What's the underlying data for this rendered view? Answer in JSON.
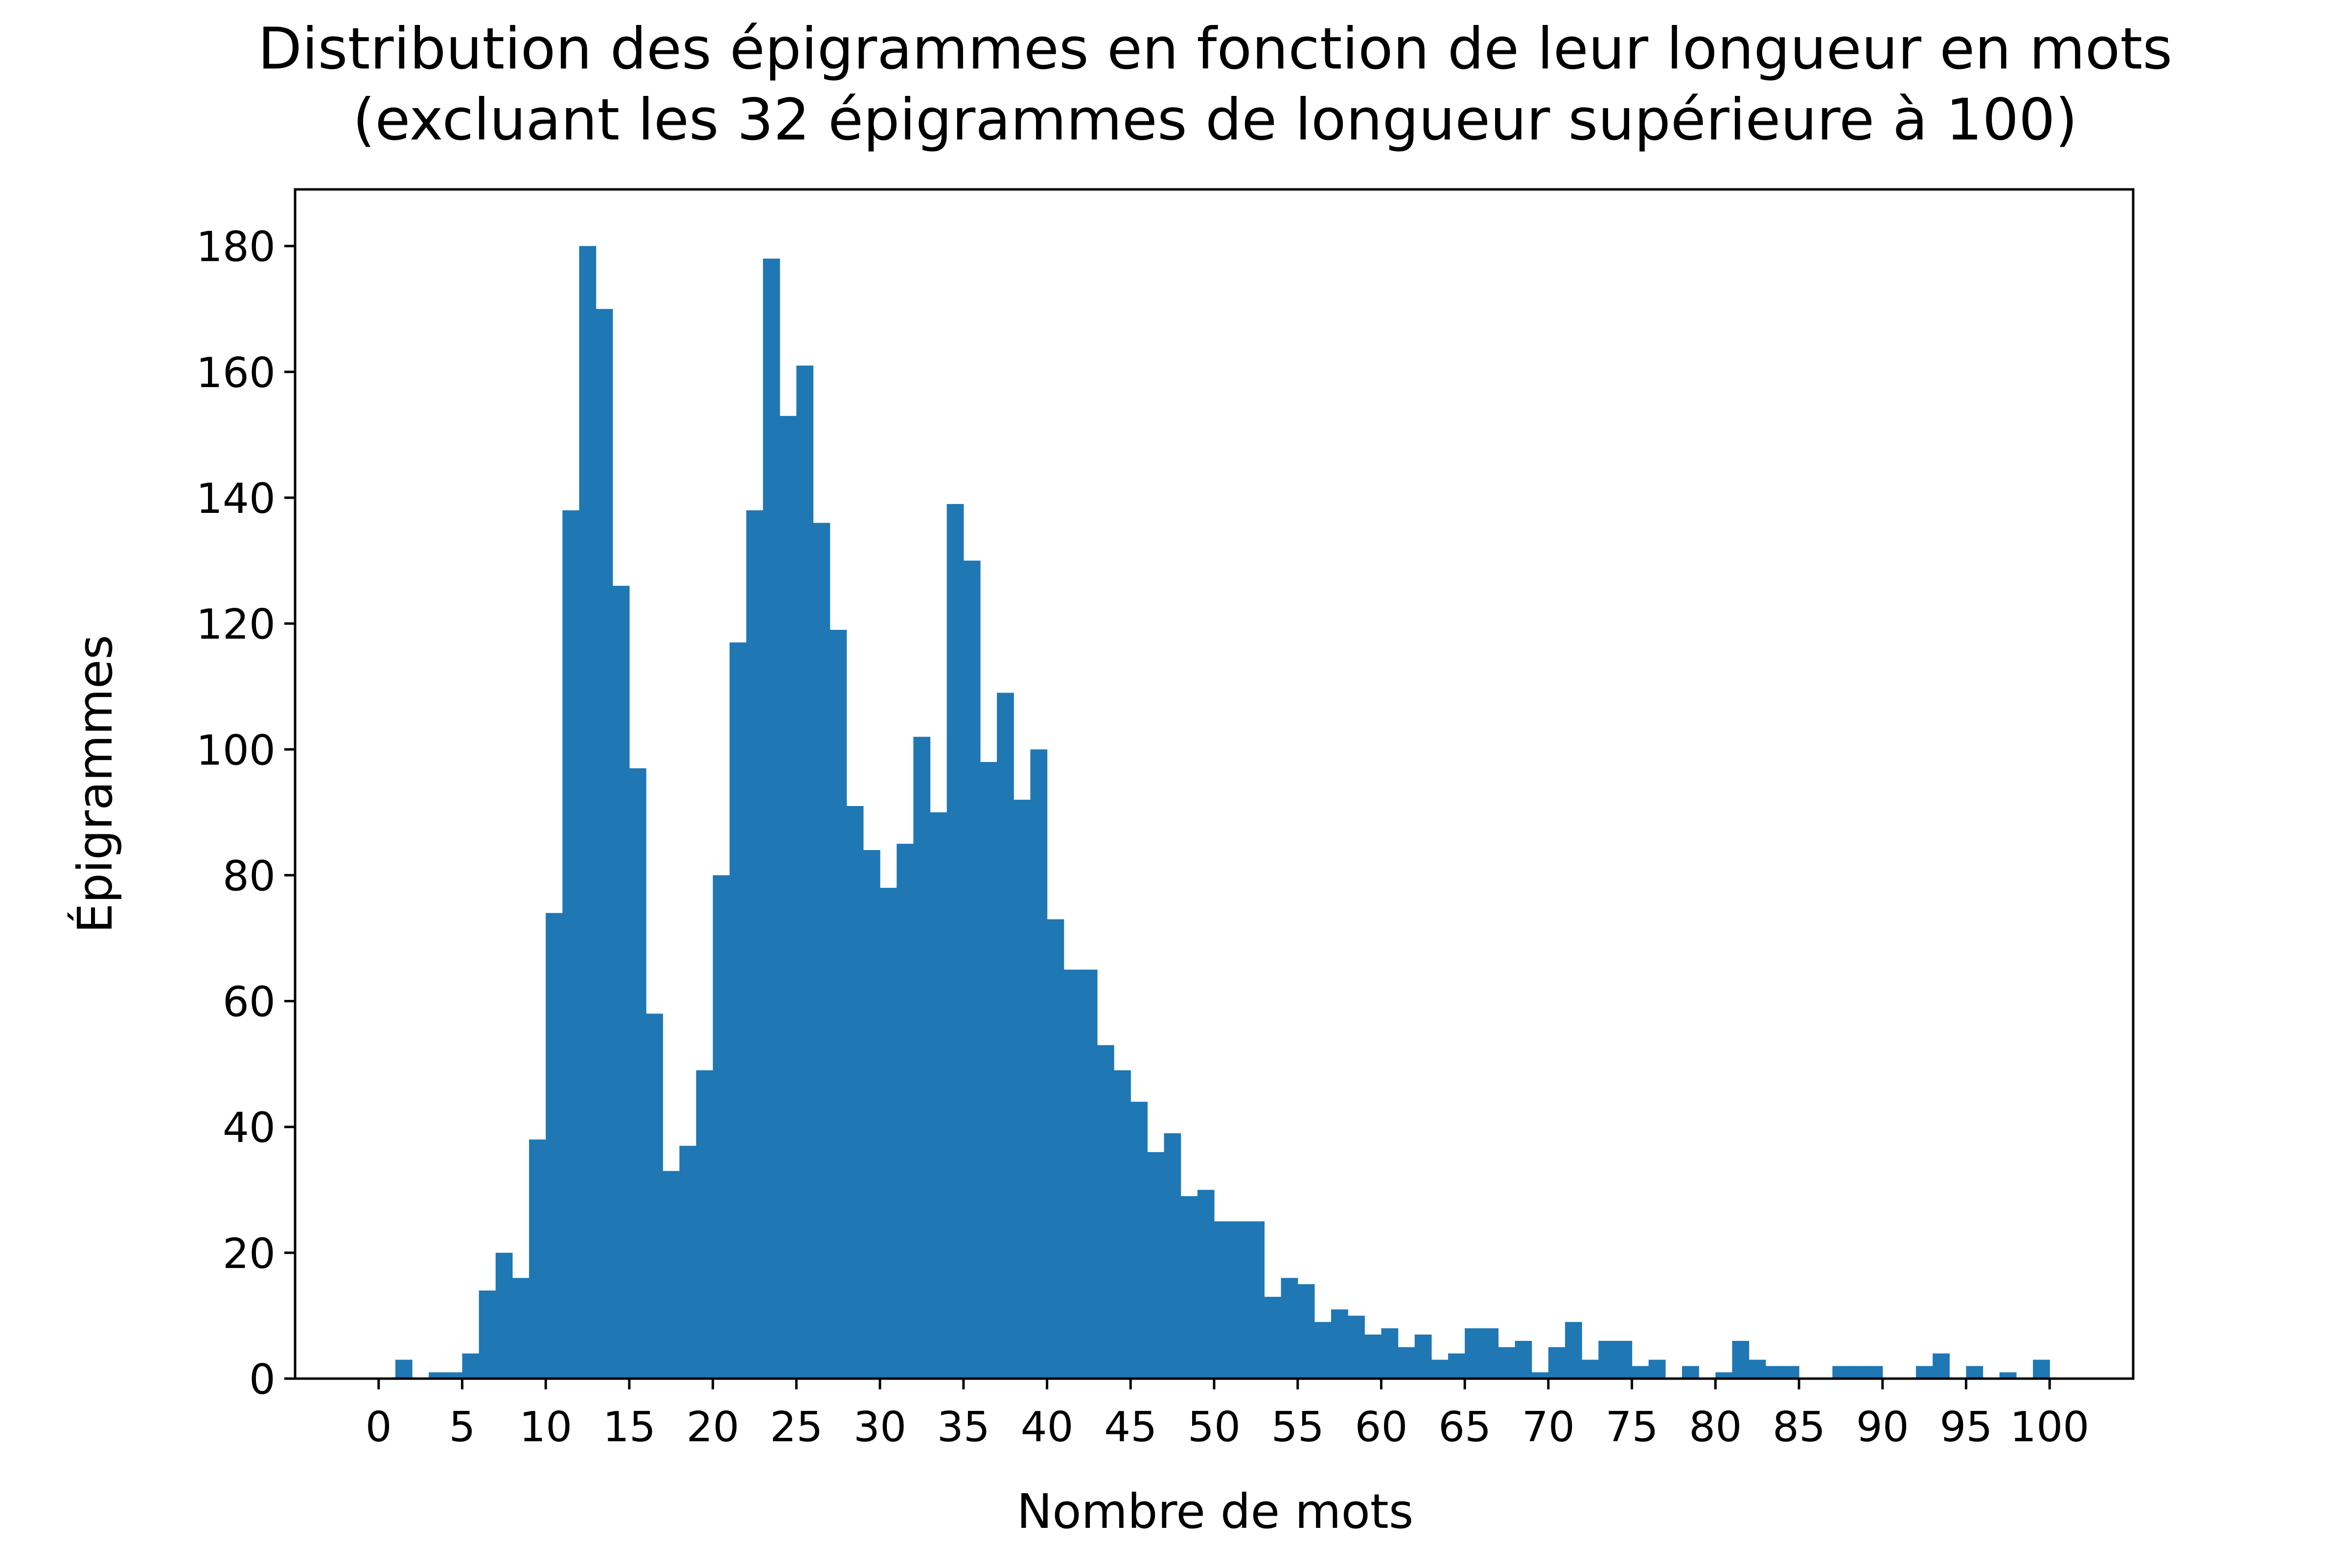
{
  "chart_data": {
    "type": "bar",
    "title": "Distribution des épigrammes en fonction de leur longueur en mots",
    "subtitle": "(excluant les 32 épigrammes de longueur supérieure à 100)",
    "xlabel": "Nombre de mots",
    "ylabel": "Épigrammes",
    "xlim": [
      -5,
      105
    ],
    "ylim": [
      0,
      189
    ],
    "x_ticks": [
      0,
      5,
      10,
      15,
      20,
      25,
      30,
      35,
      40,
      45,
      50,
      55,
      60,
      65,
      70,
      75,
      80,
      85,
      90,
      95,
      100
    ],
    "x_tick_labels": [
      "0",
      "5",
      "10",
      "15",
      "20",
      "25",
      "30",
      "35",
      "40",
      "45",
      "50",
      "55",
      "60",
      "65",
      "70",
      "75",
      "80",
      "85",
      "90",
      "95",
      "100"
    ],
    "y_ticks": [
      0,
      20,
      40,
      60,
      80,
      100,
      120,
      140,
      160,
      180
    ],
    "y_tick_labels": [
      "0",
      "20",
      "40",
      "60",
      "80",
      "100",
      "120",
      "140",
      "160",
      "180"
    ],
    "grid": false,
    "bin_range": [
      0,
      100
    ],
    "bin_count": 100,
    "counts": [
      0,
      3,
      0,
      1,
      1,
      4,
      14,
      20,
      16,
      38,
      74,
      138,
      180,
      170,
      126,
      97,
      58,
      33,
      37,
      49,
      80,
      117,
      138,
      178,
      153,
      161,
      136,
      119,
      91,
      84,
      78,
      85,
      102,
      90,
      139,
      130,
      98,
      109,
      92,
      100,
      73,
      65,
      65,
      53,
      49,
      44,
      36,
      39,
      29,
      30,
      25,
      25,
      25,
      13,
      16,
      15,
      9,
      11,
      10,
      7,
      8,
      5,
      7,
      3,
      4,
      8,
      8,
      5,
      6,
      1,
      5,
      9,
      3,
      6,
      6,
      2,
      3,
      0,
      2,
      0,
      1,
      6,
      3,
      2,
      2,
      0,
      0,
      2,
      2,
      2,
      0,
      0,
      2,
      4,
      0,
      2,
      0,
      1,
      0,
      3
    ],
    "bar_color": "#1f77b4"
  }
}
